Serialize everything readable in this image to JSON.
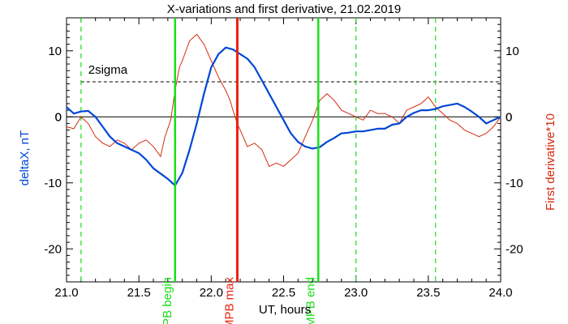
{
  "chart_data": {
    "type": "line",
    "title": "X-variations and first derivative, 21.02.2019",
    "xlabel": "UT, hours",
    "ylabel_left": "deltaX, nT",
    "ylabel_right": "First derivative*10",
    "xlim": [
      21.0,
      24.0
    ],
    "ylim": [
      -25,
      15
    ],
    "x_ticks": [
      "21.0",
      "21.5",
      "22.0",
      "22.5",
      "23.0",
      "23.5",
      "24.0"
    ],
    "y_ticks": [
      "10",
      "0",
      "-10",
      "-20"
    ],
    "colors": {
      "deltaX": "#0047d6",
      "derivative": "#d42a10",
      "mpb": "#18e018",
      "mpb_max": "#e82010",
      "axis": "#000000"
    },
    "series": [
      {
        "name": "deltaX, nT",
        "x": [
          21.0,
          21.05,
          21.1,
          21.15,
          21.2,
          21.25,
          21.3,
          21.35,
          21.4,
          21.45,
          21.5,
          21.55,
          21.6,
          21.65,
          21.7,
          21.75,
          21.8,
          21.85,
          21.9,
          21.95,
          22.0,
          22.05,
          22.1,
          22.15,
          22.2,
          22.25,
          22.3,
          22.35,
          22.4,
          22.45,
          22.5,
          22.55,
          22.6,
          22.65,
          22.7,
          22.75,
          22.8,
          22.85,
          22.9,
          22.95,
          23.0,
          23.05,
          23.1,
          23.15,
          23.2,
          23.25,
          23.3,
          23.35,
          23.4,
          23.45,
          23.5,
          23.55,
          23.6,
          23.65,
          23.7,
          23.75,
          23.8,
          23.85,
          23.9,
          23.95,
          24.0
        ],
        "values": [
          1.5,
          0.5,
          0.8,
          0.9,
          0.0,
          -1.5,
          -3.0,
          -4.0,
          -4.5,
          -5.0,
          -5.5,
          -6.5,
          -7.8,
          -8.6,
          -9.4,
          -10.4,
          -8.5,
          -5.0,
          -1.0,
          3.5,
          7.5,
          9.5,
          10.5,
          10.2,
          9.5,
          8.8,
          7.5,
          5.5,
          3.5,
          1.5,
          -0.5,
          -2.5,
          -3.8,
          -4.5,
          -4.8,
          -4.6,
          -3.8,
          -3.2,
          -2.5,
          -2.4,
          -2.2,
          -2.2,
          -2.0,
          -1.8,
          -1.8,
          -1.2,
          -1.0,
          0.0,
          0.6,
          1.0,
          1.0,
          1.2,
          1.6,
          1.8,
          2.0,
          1.5,
          0.8,
          0.0,
          -1.0,
          -0.5,
          0.0
        ]
      },
      {
        "name": "First derivative*10",
        "x": [
          21.0,
          21.05,
          21.1,
          21.15,
          21.2,
          21.25,
          21.3,
          21.35,
          21.4,
          21.45,
          21.5,
          21.55,
          21.6,
          21.65,
          21.68,
          21.72,
          21.75,
          21.78,
          21.8,
          21.85,
          21.9,
          21.95,
          22.0,
          22.05,
          22.1,
          22.13,
          22.15,
          22.18,
          22.2,
          22.25,
          22.3,
          22.35,
          22.4,
          22.45,
          22.5,
          22.55,
          22.6,
          22.65,
          22.7,
          22.75,
          22.8,
          22.85,
          22.9,
          22.95,
          23.0,
          23.05,
          23.1,
          23.15,
          23.2,
          23.25,
          23.3,
          23.35,
          23.4,
          23.45,
          23.5,
          23.55,
          23.6,
          23.65,
          23.7,
          23.75,
          23.8,
          23.85,
          23.9,
          23.95,
          24.0
        ],
        "values": [
          -1.5,
          -1.8,
          0.0,
          -1.0,
          -3.0,
          -4.0,
          -4.5,
          -3.5,
          -4.0,
          -5.0,
          -4.0,
          -3.5,
          -4.5,
          -6.0,
          -3.0,
          -0.5,
          4.0,
          7.5,
          8.5,
          11.5,
          12.5,
          11.0,
          8.5,
          6.0,
          4.0,
          2.5,
          1.0,
          -1.0,
          -2.0,
          -4.5,
          -4.0,
          -5.0,
          -7.5,
          -7.0,
          -7.5,
          -6.5,
          -5.5,
          -3.0,
          -0.5,
          2.5,
          3.5,
          2.5,
          1.0,
          0.5,
          0.0,
          -0.5,
          1.0,
          0.5,
          0.5,
          0.0,
          -1.0,
          1.0,
          1.5,
          2.0,
          3.0,
          1.5,
          0.5,
          -0.5,
          -1.0,
          -2.0,
          -2.5,
          -3.0,
          -2.5,
          -1.5,
          0.0
        ]
      }
    ],
    "threshold": {
      "label": "2sigma",
      "value": 5.3
    },
    "zero_line": 0,
    "dashed_markers_x": [
      21.1,
      23.0,
      23.55
    ],
    "markers": [
      {
        "label": "MPB begin",
        "x": 21.75,
        "kind": "mpb"
      },
      {
        "label": "MPB max",
        "x": 22.18,
        "kind": "mpb_max"
      },
      {
        "label": "MPB end",
        "x": 22.74,
        "kind": "mpb"
      }
    ]
  }
}
